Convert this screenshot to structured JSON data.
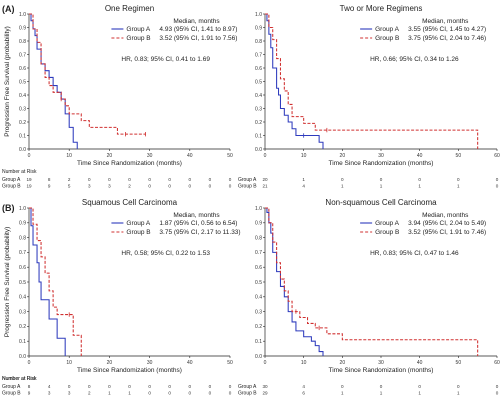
{
  "panel_labels": [
    "(A)",
    "(B)"
  ],
  "ylabel": "Progression Free Survival (probability)",
  "xlabel": "Time Since Randomization (months)",
  "colors": {
    "group_a": "#2e3bbd",
    "group_b": "#d03030",
    "axis": "#222222"
  },
  "chart_data": [
    {
      "type": "line",
      "title": "One Regimen",
      "xlabel": "Time Since Randomization (months)",
      "ylabel": "Progression Free Survival (probability)",
      "xlim": [
        0,
        50
      ],
      "ylim": [
        0,
        1
      ],
      "xticks": [
        "0",
        "10",
        "20",
        "30",
        "40",
        "50"
      ],
      "yticks": [
        "0.0",
        "0.1",
        "0.2",
        "0.3",
        "0.4",
        "0.5",
        "0.6",
        "0.7",
        "0.8",
        "0.9",
        "1.0"
      ],
      "legend_title": "Median, months",
      "series": [
        {
          "name": "Group A",
          "median_text": "4.93 (95% CI, 1.41 to 8.97)",
          "steps": [
            [
              0,
              1.0
            ],
            [
              0.5,
              0.95
            ],
            [
              1,
              0.89
            ],
            [
              1.5,
              0.84
            ],
            [
              2,
              0.74
            ],
            [
              3,
              0.63
            ],
            [
              4,
              0.58
            ],
            [
              5,
              0.53
            ],
            [
              6,
              0.47
            ],
            [
              7,
              0.42
            ],
            [
              8,
              0.37
            ],
            [
              9,
              0.26
            ],
            [
              10,
              0.16
            ],
            [
              11,
              0.05
            ],
            [
              12,
              0.0
            ]
          ]
        },
        {
          "name": "Group B",
          "median_text": "3.52 (95% CI, 1.91 to 7.56)",
          "steps": [
            [
              0,
              1.0
            ],
            [
              1,
              0.89
            ],
            [
              2,
              0.79
            ],
            [
              3,
              0.63
            ],
            [
              4,
              0.53
            ],
            [
              5,
              0.47
            ],
            [
              6,
              0.42
            ],
            [
              8,
              0.37
            ],
            [
              9,
              0.32
            ],
            [
              10,
              0.26
            ],
            [
              13,
              0.21
            ],
            [
              15,
              0.16
            ],
            [
              22,
              0.11
            ],
            [
              29,
              0.11
            ]
          ],
          "censors": [
            [
              8,
              0.37
            ],
            [
              24,
              0.11
            ],
            [
              29,
              0.11
            ]
          ]
        }
      ],
      "annotation": "HR, 0.83; 95% CI, 0.41 to 1.69",
      "risk": {
        "title": "Number at Risk",
        "labels": [
          "Group A",
          "Group B"
        ],
        "times": [
          0,
          5,
          10,
          15,
          20,
          25,
          30,
          35,
          40,
          45,
          50
        ],
        "rows": [
          [
            "19",
            "8",
            "2",
            "0",
            "0",
            "0",
            "0",
            "0",
            "0",
            "0",
            "0"
          ],
          [
            "19",
            "9",
            "5",
            "3",
            "3",
            "2",
            "0",
            "0",
            "0",
            "0",
            "0"
          ]
        ]
      }
    },
    {
      "type": "line",
      "title": "Two or More Regimens",
      "xlabel": "Time Since Randomization (months)",
      "ylabel": "",
      "xlim": [
        0,
        60
      ],
      "ylim": [
        0,
        1
      ],
      "xticks": [
        "0",
        "10",
        "20",
        "30",
        "40",
        "50",
        "60"
      ],
      "yticks": [
        "0.0",
        "0.1",
        "0.2",
        "0.3",
        "0.4",
        "0.5",
        "0.6",
        "0.7",
        "0.8",
        "0.9",
        "1.0"
      ],
      "legend_title": "Median, months",
      "series": [
        {
          "name": "Group A",
          "median_text": "3.55 (95% CI, 1.45 to 4.27)",
          "steps": [
            [
              0,
              1.0
            ],
            [
              0.5,
              0.95
            ],
            [
              1,
              0.85
            ],
            [
              1.5,
              0.75
            ],
            [
              2,
              0.6
            ],
            [
              3,
              0.45
            ],
            [
              3.5,
              0.4
            ],
            [
              4,
              0.3
            ],
            [
              5,
              0.25
            ],
            [
              6,
              0.2
            ],
            [
              7,
              0.15
            ],
            [
              8,
              0.1
            ],
            [
              14,
              0.05
            ],
            [
              15,
              0.0
            ]
          ],
          "censors": [
            [
              10,
              0.1
            ]
          ]
        },
        {
          "name": "Group B",
          "median_text": "3.75 (95% CI, 2.04 to 7.46)",
          "steps": [
            [
              0,
              1.0
            ],
            [
              1,
              0.9
            ],
            [
              2,
              0.81
            ],
            [
              3,
              0.67
            ],
            [
              4,
              0.52
            ],
            [
              5,
              0.43
            ],
            [
              6,
              0.33
            ],
            [
              7,
              0.24
            ],
            [
              10,
              0.19
            ],
            [
              13,
              0.14
            ],
            [
              55,
              0.0
            ]
          ],
          "censors": [
            [
              16,
              0.14
            ]
          ]
        }
      ],
      "annotation": "HR, 0.66; 95% CI, 0.34 to 1.26",
      "risk": {
        "title": "",
        "labels": [
          "Group A",
          "Group B"
        ],
        "times": [
          0,
          10,
          20,
          30,
          40,
          50,
          60
        ],
        "rows": [
          [
            "20",
            "1",
            "0",
            "0",
            "0",
            "0",
            "0"
          ],
          [
            "21",
            "4",
            "1",
            "1",
            "1",
            "1",
            "0"
          ]
        ]
      }
    },
    {
      "type": "line",
      "title": "Squamous Cell Carcinoma",
      "xlabel": "Time Since Randomization (months)",
      "ylabel": "Progression Free Survival (probability)",
      "xlim": [
        0,
        50
      ],
      "ylim": [
        0,
        1
      ],
      "xticks": [
        "0",
        "10",
        "20",
        "30",
        "40",
        "50"
      ],
      "yticks": [
        "0.0",
        "0.1",
        "0.2",
        "0.3",
        "0.4",
        "0.5",
        "0.6",
        "0.7",
        "0.8",
        "0.9",
        "1.0"
      ],
      "legend_title": "Median, months",
      "series": [
        {
          "name": "Group A",
          "median_text": "1.87 (95% CI, 0.56 to 6.54)",
          "steps": [
            [
              0,
              1.0
            ],
            [
              0.5,
              0.88
            ],
            [
              1,
              0.75
            ],
            [
              2,
              0.63
            ],
            [
              2.5,
              0.5
            ],
            [
              3,
              0.38
            ],
            [
              5,
              0.25
            ],
            [
              7,
              0.12
            ],
            [
              9,
              0.0
            ]
          ]
        },
        {
          "name": "Group B",
          "median_text": "3.75 (95% CI, 2.17 to 11.33)",
          "steps": [
            [
              0,
              1.0
            ],
            [
              1,
              0.89
            ],
            [
              2,
              0.78
            ],
            [
              3,
              0.67
            ],
            [
              4,
              0.56
            ],
            [
              5,
              0.44
            ],
            [
              6,
              0.33
            ],
            [
              7,
              0.28
            ],
            [
              11,
              0.14
            ],
            [
              13,
              0.0
            ]
          ],
          "censors": [
            [
              10,
              0.28
            ]
          ]
        }
      ],
      "annotation": "HR, 0.58; 95% CI, 0.22 to 1.53",
      "risk": {
        "title": "Number at Risk",
        "labels": [
          "Group A",
          "Group B"
        ],
        "times": [
          0,
          5,
          10,
          15,
          20,
          25,
          30,
          35,
          40,
          45,
          50
        ],
        "rows": [
          [
            "8",
            "4",
            "0",
            "0",
            "0",
            "0",
            "0",
            "0",
            "0",
            "0",
            "0"
          ],
          [
            "9",
            "3",
            "3",
            "2",
            "1",
            "1",
            "0",
            "0",
            "0",
            "0",
            "0"
          ]
        ]
      }
    },
    {
      "type": "line",
      "title": "Non-squamous Cell Carcinoma",
      "xlabel": "Time Since Randomization (months)",
      "ylabel": "",
      "xlim": [
        0,
        60
      ],
      "ylim": [
        0,
        1
      ],
      "xticks": [
        "0",
        "10",
        "20",
        "30",
        "40",
        "50",
        "60"
      ],
      "yticks": [
        "0.0",
        "0.1",
        "0.2",
        "0.3",
        "0.4",
        "0.5",
        "0.6",
        "0.7",
        "0.8",
        "0.9",
        "1.0"
      ],
      "legend_title": "Median, months",
      "series": [
        {
          "name": "Group A",
          "median_text": "3.94 (95% CI, 2.04 to 5.49)",
          "steps": [
            [
              0,
              1.0
            ],
            [
              0.5,
              0.97
            ],
            [
              1,
              0.9
            ],
            [
              1.5,
              0.83
            ],
            [
              2,
              0.7
            ],
            [
              3,
              0.57
            ],
            [
              4,
              0.47
            ],
            [
              5,
              0.4
            ],
            [
              6,
              0.3
            ],
            [
              7,
              0.23
            ],
            [
              8,
              0.17
            ],
            [
              10,
              0.13
            ],
            [
              12,
              0.1
            ],
            [
              13,
              0.07
            ],
            [
              14,
              0.03
            ],
            [
              15,
              0.0
            ]
          ]
        },
        {
          "name": "Group B",
          "median_text": "3.52 (95% CI, 1.91 to 7.46)",
          "steps": [
            [
              0,
              1.0
            ],
            [
              1,
              0.9
            ],
            [
              2,
              0.77
            ],
            [
              3,
              0.63
            ],
            [
              4,
              0.52
            ],
            [
              5,
              0.44
            ],
            [
              6,
              0.37
            ],
            [
              7,
              0.3
            ],
            [
              9,
              0.26
            ],
            [
              11,
              0.22
            ],
            [
              13,
              0.19
            ],
            [
              16,
              0.15
            ],
            [
              20,
              0.11
            ],
            [
              55,
              0.0
            ]
          ],
          "censors": [
            [
              8,
              0.3
            ],
            [
              14,
              0.19
            ]
          ]
        }
      ],
      "annotation": "HR, 0.83; 95% CI, 0.47 to 1.46",
      "risk": {
        "title": "Number at Risk",
        "labels": [
          "Group A",
          "Group B"
        ],
        "times": [
          0,
          10,
          20,
          30,
          40,
          50,
          60
        ],
        "rows": [
          [
            "30",
            "4",
            "0",
            "0",
            "0",
            "0",
            "0"
          ],
          [
            "29",
            "6",
            "1",
            "1",
            "1",
            "1",
            "0"
          ]
        ]
      }
    }
  ]
}
